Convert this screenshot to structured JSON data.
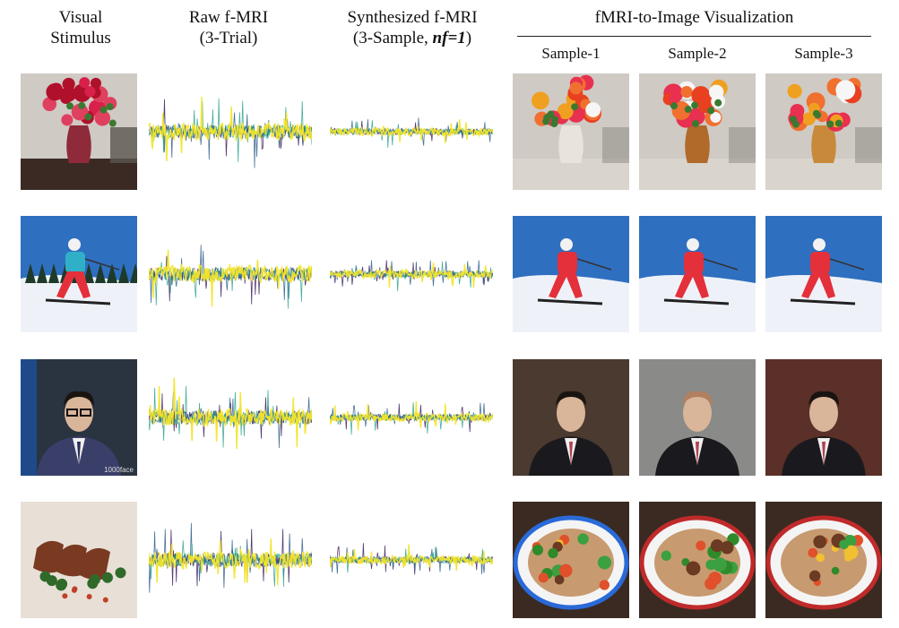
{
  "headers": {
    "stimulus": [
      "Visual",
      "Stimulus"
    ],
    "raw": [
      "Raw f-MRI",
      "(3-Trial)"
    ],
    "synth_line1": "Synthesized f-MRI",
    "synth_prefix": "(3-Sample, ",
    "synth_param": "nf=1",
    "synth_suffix": ")",
    "viz": "fMRI-to-Image Visualization",
    "samples": [
      "Sample-1",
      "Sample-2",
      "Sample-3"
    ]
  },
  "rows": [
    {
      "subject": "flowers-in-vase",
      "colors": {
        "bg": "#cfcac4",
        "mid": "#8e2a3a",
        "accent": "#d8204a",
        "dark": "#3b2a24"
      }
    },
    {
      "subject": "skier",
      "colors": {
        "bg": "#2f6fc0",
        "mid": "#ffffff",
        "accent": "#e3303a",
        "dark": "#30b0c8"
      }
    },
    {
      "subject": "man-portrait",
      "colors": {
        "bg": "#2a3340",
        "mid": "#d9b59a",
        "accent": "#3a3f6a",
        "dark": "#1a1c22"
      }
    },
    {
      "subject": "plated-food",
      "colors": {
        "bg": "#6a4830",
        "mid": "#7a3a22",
        "accent": "#2f6a2a",
        "dark": "#c04028"
      }
    }
  ],
  "watermark": "1000face",
  "signal_colors": [
    "#3a1a5a",
    "#2a5a8a",
    "#2aa08a",
    "#f2e52a"
  ]
}
